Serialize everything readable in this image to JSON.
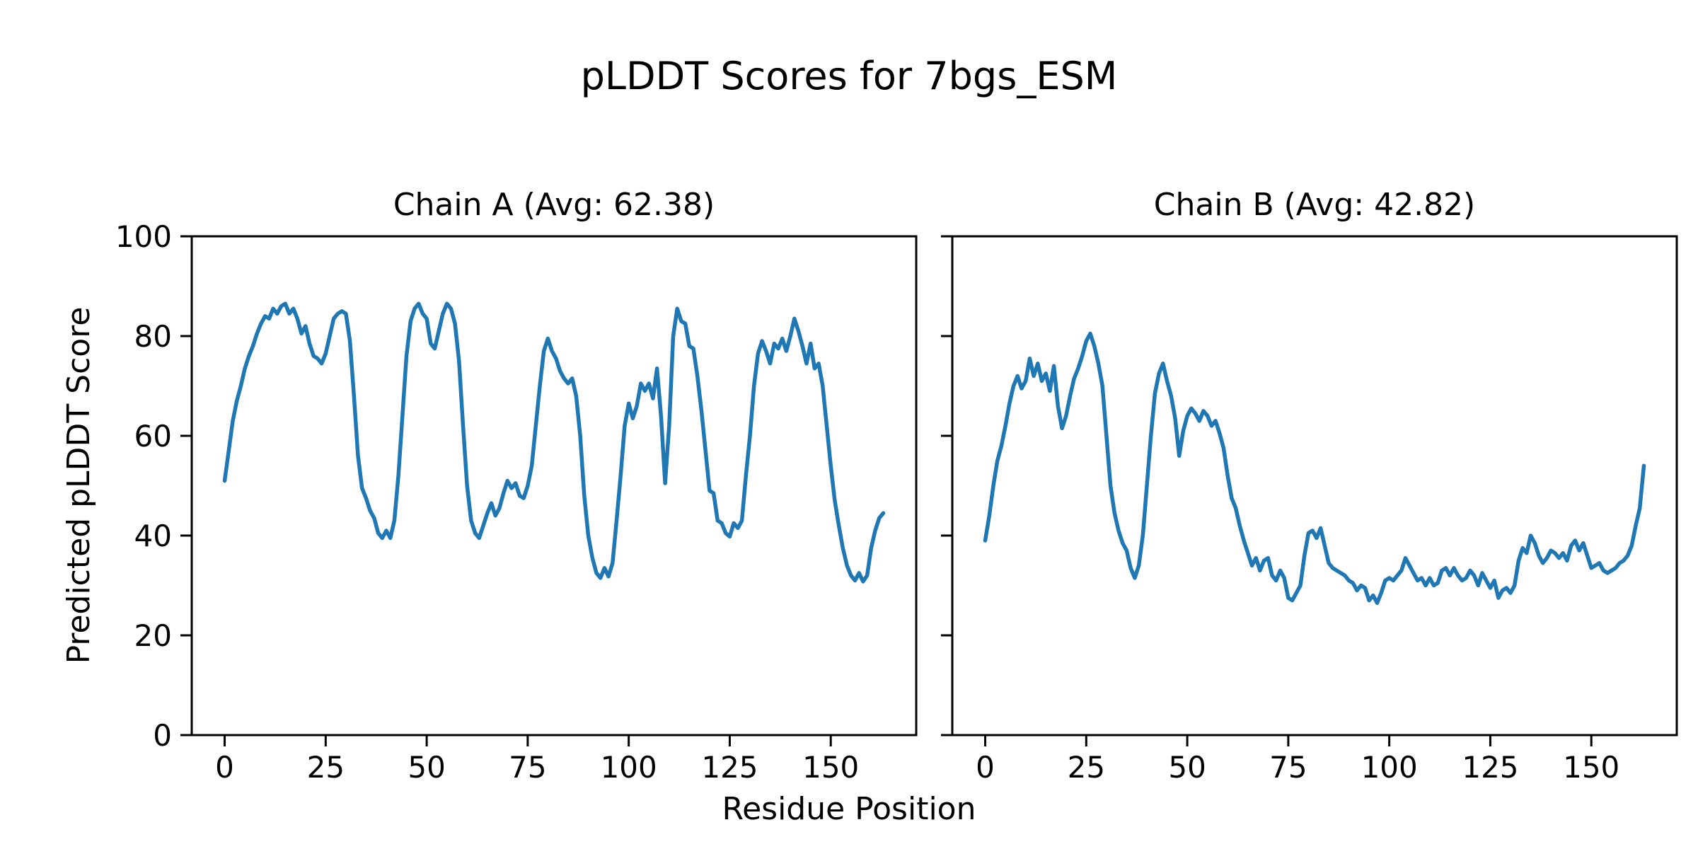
{
  "figure_title": "pLDDT Scores for 7bgs_ESM",
  "shared_xlabel": "Residue Position",
  "shared_ylabel": "Predicted pLDDT Score",
  "line_color": "#1f77b4",
  "background_color": "#ffffff",
  "text_color": "#000000",
  "chart_data": [
    {
      "type": "line",
      "title": "Chain A (Avg: 62.38)",
      "chain": "A",
      "average_plddt": 62.38,
      "xlabel": "Residue Position",
      "ylabel": "Predicted pLDDT Score",
      "xlim": [
        -8.15,
        171.15
      ],
      "ylim": [
        0,
        100
      ],
      "xticks": [
        0,
        25,
        50,
        75,
        100,
        125,
        150
      ],
      "yticks": [
        0,
        20,
        40,
        60,
        80,
        100
      ],
      "show_y_tick_labels": true,
      "grid": false,
      "legend": "none",
      "x_start": 0,
      "x_step": 1,
      "values": [
        51,
        57,
        63,
        67,
        70,
        73.5,
        76,
        78,
        80.5,
        82.5,
        84,
        83.5,
        85.5,
        84.5,
        86,
        86.5,
        84.5,
        85.5,
        83.5,
        80.5,
        82,
        78.5,
        76,
        75.5,
        74.5,
        76.5,
        80,
        83.5,
        84.5,
        85,
        84.5,
        79,
        68,
        56,
        49.5,
        47.5,
        45,
        43.5,
        40.5,
        39.5,
        41,
        39.5,
        43,
        52,
        64,
        76,
        83,
        85.5,
        86.5,
        84.5,
        83.5,
        78.5,
        77.5,
        81,
        84.5,
        86.5,
        85.5,
        82.5,
        75,
        62,
        50,
        43,
        40.5,
        39.5,
        42,
        44.5,
        46.5,
        44,
        45.5,
        48.5,
        51,
        49.5,
        50.5,
        48,
        47.5,
        50,
        54,
        62,
        70,
        77,
        79.5,
        77,
        75.5,
        73,
        71.5,
        70.5,
        71.5,
        68,
        60,
        48,
        40,
        35.5,
        32.5,
        31.5,
        33.5,
        31.8,
        34.5,
        43,
        52,
        62,
        66.5,
        63.5,
        66,
        70.5,
        69,
        70.5,
        67.5,
        73.5,
        64,
        50.5,
        62,
        80,
        85.5,
        83,
        82.5,
        78,
        77.5,
        72,
        65,
        57,
        49,
        48.5,
        43,
        42.5,
        40.5,
        39.8,
        42.5,
        41.5,
        43,
        52,
        60,
        70,
        76.5,
        79,
        77,
        74.5,
        78.5,
        77.5,
        79.5,
        77,
        80,
        83.5,
        81,
        78,
        74.5,
        78.5,
        73.5,
        74.5,
        70,
        62,
        54,
        47,
        42,
        37.5,
        34,
        32,
        31,
        32.5,
        30.8,
        32,
        37.5,
        41,
        43.5,
        44.5
      ]
    },
    {
      "type": "line",
      "title": "Chain B (Avg: 42.82)",
      "chain": "B",
      "average_plddt": 42.82,
      "xlabel": "Residue Position",
      "ylabel": "Predicted pLDDT Score",
      "xlim": [
        -8.15,
        171.15
      ],
      "ylim": [
        0,
        100
      ],
      "xticks": [
        0,
        25,
        50,
        75,
        100,
        125,
        150
      ],
      "yticks": [
        0,
        20,
        40,
        60,
        80,
        100
      ],
      "show_y_tick_labels": false,
      "grid": false,
      "legend": "none",
      "x_start": 0,
      "x_step": 1,
      "values": [
        39,
        44,
        50,
        55,
        58,
        62,
        66.5,
        70,
        72,
        69.5,
        71,
        75.5,
        72,
        74.5,
        71,
        72.5,
        69,
        74,
        66,
        61.5,
        64,
        68,
        71.5,
        73.5,
        76,
        79,
        80.5,
        78,
        74.5,
        70,
        60,
        50,
        44.5,
        41,
        38.5,
        37,
        33.5,
        31.5,
        34,
        40,
        50,
        60,
        68.5,
        72.5,
        74.5,
        71,
        68,
        63.5,
        56,
        61,
        64,
        65.5,
        64.5,
        63,
        65,
        64,
        62,
        63,
        60.5,
        57.5,
        52,
        47.5,
        45.5,
        42,
        39,
        36.5,
        34,
        35.5,
        33,
        35,
        35.5,
        32,
        31,
        33,
        31.5,
        27.5,
        27,
        28.5,
        30,
        36,
        40.5,
        41,
        39.5,
        41.5,
        38,
        34.5,
        33.5,
        33,
        32.5,
        32,
        31,
        30.5,
        29,
        30,
        29.5,
        27,
        28,
        26.5,
        28.5,
        31,
        31.5,
        31,
        32,
        33,
        35.5,
        34,
        32.5,
        31,
        31.5,
        30,
        31.5,
        30,
        30.5,
        33,
        33.5,
        32,
        33.5,
        32,
        31,
        31.5,
        33,
        32,
        30,
        32.5,
        31,
        29.5,
        31,
        27.5,
        29,
        29.5,
        28.5,
        30,
        35,
        37.5,
        36.5,
        40,
        38.5,
        36,
        34.5,
        35.5,
        37,
        36.5,
        35.5,
        36.5,
        35,
        38,
        39,
        37,
        38.5,
        36,
        33.5,
        34,
        34.5,
        33,
        32.5,
        33,
        33.5,
        34.5,
        35,
        36,
        38,
        42,
        45.5,
        54
      ]
    }
  ]
}
